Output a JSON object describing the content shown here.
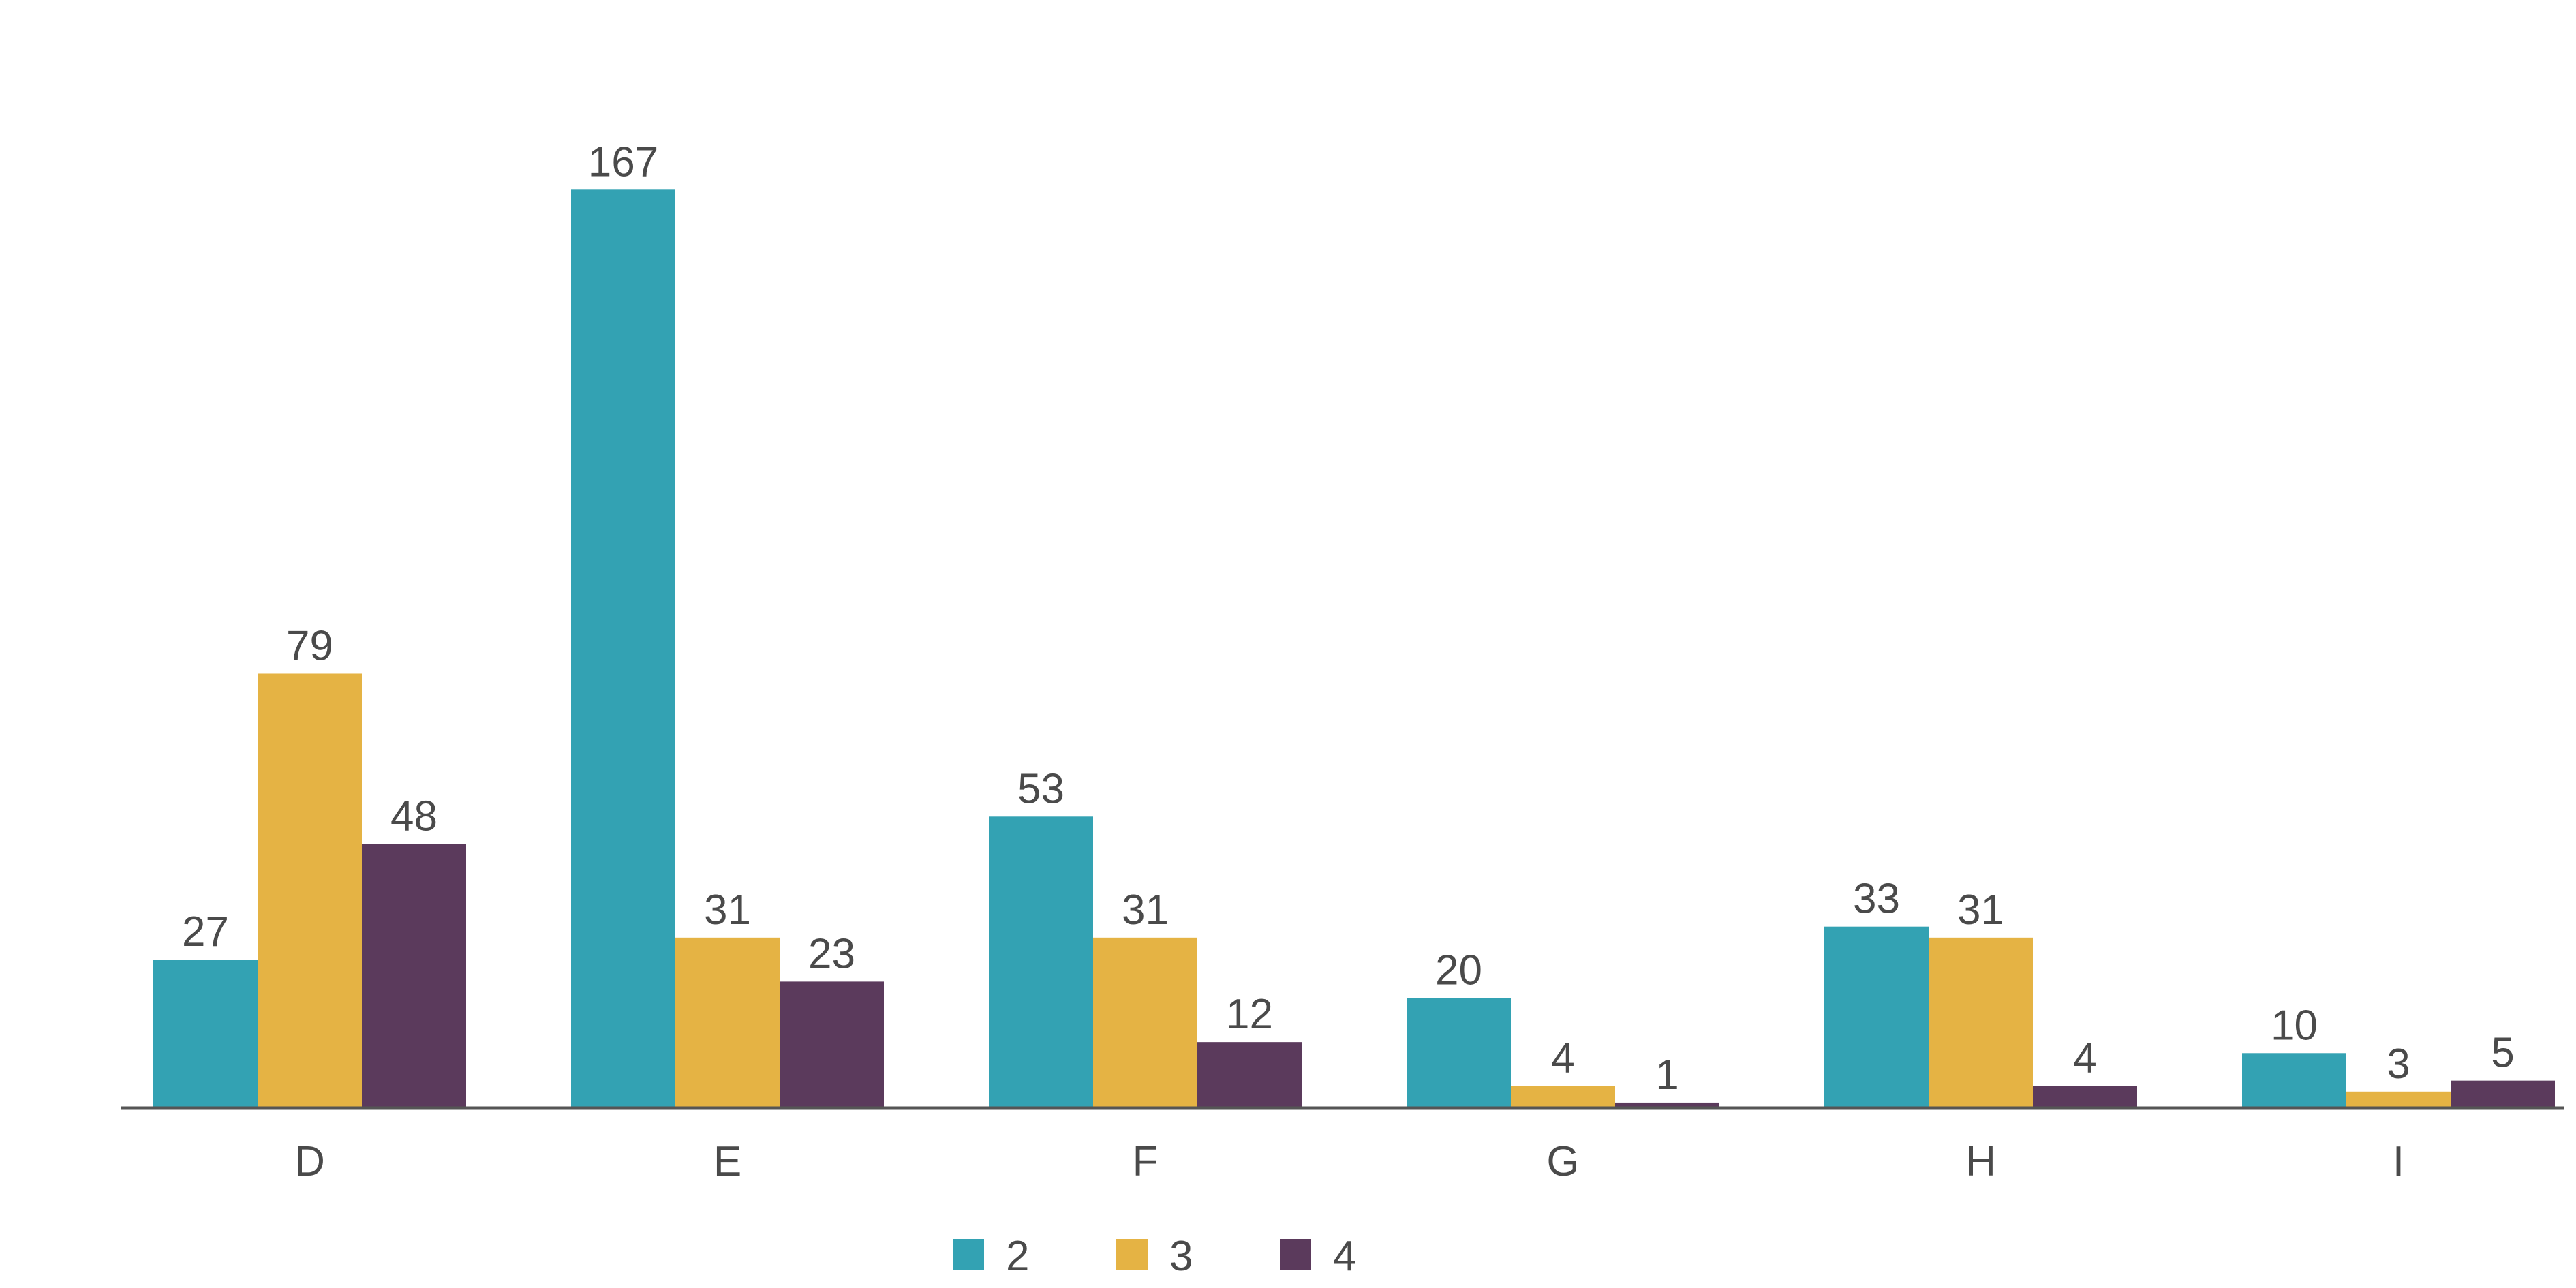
{
  "chart_data": {
    "type": "bar",
    "title": "",
    "xlabel": "",
    "ylabel": "",
    "categories": [
      "D",
      "E",
      "F",
      "G",
      "H",
      "I"
    ],
    "series": [
      {
        "name": "2",
        "color": "#33A2B3",
        "values": [
          27,
          167,
          53,
          20,
          33,
          10
        ]
      },
      {
        "name": "3",
        "color": "#E5B344",
        "values": [
          79,
          31,
          31,
          4,
          31,
          3
        ]
      },
      {
        "name": "4",
        "color": "#5B3A5C",
        "values": [
          48,
          23,
          12,
          1,
          4,
          5
        ]
      }
    ],
    "ylim": [
      0,
      180
    ],
    "grid": false,
    "legend_position": "bottom-center",
    "data_labels": true
  }
}
